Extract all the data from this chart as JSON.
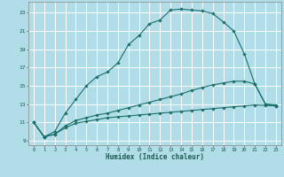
{
  "title": "",
  "xlabel": "Humidex (Indice chaleur)",
  "bg_color": "#b0dde8",
  "grid_color": "#ffffff",
  "line_color": "#1a6e6a",
  "xlim": [
    -0.5,
    23.5
  ],
  "ylim": [
    8.5,
    24.2
  ],
  "xticks": [
    0,
    1,
    2,
    3,
    4,
    5,
    6,
    7,
    8,
    9,
    10,
    11,
    12,
    13,
    14,
    15,
    16,
    17,
    18,
    19,
    20,
    21,
    22,
    23
  ],
  "yticks": [
    9,
    11,
    13,
    15,
    17,
    19,
    21,
    23
  ],
  "series": [
    {
      "x": [
        0,
        1,
        2,
        3,
        4,
        5,
        6,
        7,
        8,
        9,
        10,
        11,
        12,
        13,
        14,
        15,
        16,
        17,
        18,
        19,
        20,
        21,
        22,
        23
      ],
      "y": [
        11.0,
        9.4,
        10.0,
        12.0,
        13.5,
        15.0,
        16.0,
        16.5,
        17.5,
        19.5,
        20.5,
        21.8,
        22.2,
        23.3,
        23.4,
        23.3,
        23.2,
        22.9,
        22.0,
        21.0,
        18.5,
        15.2,
        13.0,
        12.8
      ]
    },
    {
      "x": [
        0,
        1,
        2,
        3,
        4,
        5,
        6,
        7,
        8,
        9,
        10,
        11,
        12,
        13,
        14,
        15,
        16,
        17,
        18,
        19,
        20,
        21,
        22,
        23
      ],
      "y": [
        11.0,
        9.4,
        9.7,
        10.6,
        11.2,
        11.5,
        11.8,
        12.0,
        12.3,
        12.6,
        12.9,
        13.2,
        13.5,
        13.8,
        14.1,
        14.5,
        14.8,
        15.1,
        15.3,
        15.5,
        15.5,
        15.2,
        13.0,
        12.9
      ]
    },
    {
      "x": [
        0,
        1,
        2,
        3,
        4,
        5,
        6,
        7,
        8,
        9,
        10,
        11,
        12,
        13,
        14,
        15,
        16,
        17,
        18,
        19,
        20,
        21,
        22,
        23
      ],
      "y": [
        11.0,
        9.4,
        9.7,
        10.4,
        10.9,
        11.1,
        11.3,
        11.5,
        11.6,
        11.7,
        11.8,
        11.9,
        12.0,
        12.1,
        12.2,
        12.3,
        12.4,
        12.5,
        12.6,
        12.7,
        12.8,
        12.9,
        12.85,
        12.8
      ]
    }
  ]
}
